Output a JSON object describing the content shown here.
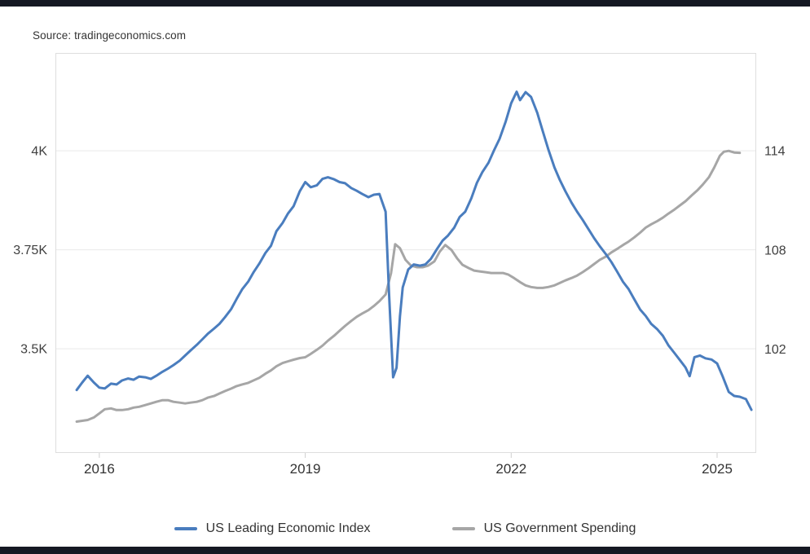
{
  "header": {
    "source": "Source: tradingeconomics.com"
  },
  "colors": {
    "top_bar": "#151823",
    "bottom_bar": "#151823",
    "grid": "#e9e9e9",
    "plot_border": "#dedede",
    "tick_text": "#404040",
    "x_tick_text": "#333333"
  },
  "chart_data": {
    "type": "line",
    "title": "",
    "xlabel": "",
    "grid": true,
    "legend_position": "bottom",
    "xlim": [
      2015.36,
      2025.57
    ],
    "x_ticks": [
      {
        "value": 2016,
        "label": "2016"
      },
      {
        "value": 2019,
        "label": "2019"
      },
      {
        "value": 2022,
        "label": "2022"
      },
      {
        "value": 2025,
        "label": "2025"
      }
    ],
    "left_axis": {
      "lim": [
        3237,
        4247
      ],
      "ticks": [
        {
          "value": 3500,
          "label": "3.5K"
        },
        {
          "value": 3750,
          "label": "3.75K"
        },
        {
          "value": 4000,
          "label": "4K"
        }
      ]
    },
    "right_axis": {
      "lim": [
        95.7,
        119.93
      ],
      "ticks": [
        {
          "value": 102,
          "label": "102"
        },
        {
          "value": 108,
          "label": "108"
        },
        {
          "value": 114,
          "label": "114"
        }
      ]
    },
    "series": [
      {
        "name": "US Leading Economic Index",
        "axis": "left",
        "color": "#4a7dbe",
        "points": [
          [
            2015.67,
            3396
          ],
          [
            2015.75,
            3415
          ],
          [
            2015.83,
            3432
          ],
          [
            2015.92,
            3415
          ],
          [
            2016.0,
            3402
          ],
          [
            2016.08,
            3400
          ],
          [
            2016.17,
            3412
          ],
          [
            2016.25,
            3410
          ],
          [
            2016.33,
            3420
          ],
          [
            2016.42,
            3425
          ],
          [
            2016.5,
            3422
          ],
          [
            2016.58,
            3430
          ],
          [
            2016.67,
            3428
          ],
          [
            2016.75,
            3424
          ],
          [
            2016.83,
            3432
          ],
          [
            2016.92,
            3442
          ],
          [
            2017.0,
            3450
          ],
          [
            2017.08,
            3459
          ],
          [
            2017.17,
            3470
          ],
          [
            2017.25,
            3483
          ],
          [
            2017.33,
            3496
          ],
          [
            2017.42,
            3510
          ],
          [
            2017.5,
            3524
          ],
          [
            2017.58,
            3538
          ],
          [
            2017.67,
            3551
          ],
          [
            2017.75,
            3563
          ],
          [
            2017.83,
            3580
          ],
          [
            2017.92,
            3600
          ],
          [
            2018.0,
            3626
          ],
          [
            2018.08,
            3650
          ],
          [
            2018.17,
            3670
          ],
          [
            2018.25,
            3694
          ],
          [
            2018.33,
            3715
          ],
          [
            2018.42,
            3742
          ],
          [
            2018.5,
            3760
          ],
          [
            2018.58,
            3797
          ],
          [
            2018.67,
            3818
          ],
          [
            2018.75,
            3842
          ],
          [
            2018.83,
            3860
          ],
          [
            2018.92,
            3898
          ],
          [
            2019.0,
            3921
          ],
          [
            2019.08,
            3908
          ],
          [
            2019.17,
            3913
          ],
          [
            2019.25,
            3929
          ],
          [
            2019.33,
            3933
          ],
          [
            2019.42,
            3928
          ],
          [
            2019.5,
            3921
          ],
          [
            2019.58,
            3918
          ],
          [
            2019.67,
            3906
          ],
          [
            2019.75,
            3899
          ],
          [
            2019.83,
            3891
          ],
          [
            2019.92,
            3883
          ],
          [
            2020.0,
            3889
          ],
          [
            2020.08,
            3891
          ],
          [
            2020.17,
            3846
          ],
          [
            2020.22,
            3640
          ],
          [
            2020.28,
            3428
          ],
          [
            2020.33,
            3452
          ],
          [
            2020.38,
            3582
          ],
          [
            2020.42,
            3655
          ],
          [
            2020.5,
            3700
          ],
          [
            2020.58,
            3713
          ],
          [
            2020.67,
            3710
          ],
          [
            2020.75,
            3713
          ],
          [
            2020.83,
            3727
          ],
          [
            2020.92,
            3752
          ],
          [
            2021.0,
            3773
          ],
          [
            2021.08,
            3786
          ],
          [
            2021.17,
            3806
          ],
          [
            2021.25,
            3833
          ],
          [
            2021.33,
            3846
          ],
          [
            2021.42,
            3880
          ],
          [
            2021.5,
            3919
          ],
          [
            2021.58,
            3946
          ],
          [
            2021.67,
            3970
          ],
          [
            2021.75,
            4001
          ],
          [
            2021.83,
            4030
          ],
          [
            2021.92,
            4074
          ],
          [
            2022.0,
            4120
          ],
          [
            2022.08,
            4149
          ],
          [
            2022.13,
            4128
          ],
          [
            2022.21,
            4148
          ],
          [
            2022.29,
            4136
          ],
          [
            2022.38,
            4096
          ],
          [
            2022.46,
            4050
          ],
          [
            2022.54,
            4004
          ],
          [
            2022.63,
            3958
          ],
          [
            2022.71,
            3926
          ],
          [
            2022.79,
            3898
          ],
          [
            2022.88,
            3869
          ],
          [
            2022.96,
            3846
          ],
          [
            2023.04,
            3826
          ],
          [
            2023.13,
            3801
          ],
          [
            2023.21,
            3779
          ],
          [
            2023.29,
            3759
          ],
          [
            2023.38,
            3739
          ],
          [
            2023.46,
            3719
          ],
          [
            2023.54,
            3696
          ],
          [
            2023.63,
            3669
          ],
          [
            2023.71,
            3651
          ],
          [
            2023.79,
            3626
          ],
          [
            2023.88,
            3599
          ],
          [
            2023.96,
            3583
          ],
          [
            2024.04,
            3563
          ],
          [
            2024.13,
            3549
          ],
          [
            2024.21,
            3533
          ],
          [
            2024.29,
            3509
          ],
          [
            2024.38,
            3489
          ],
          [
            2024.46,
            3471
          ],
          [
            2024.54,
            3453
          ],
          [
            2024.6,
            3431
          ],
          [
            2024.67,
            3479
          ],
          [
            2024.75,
            3483
          ],
          [
            2024.83,
            3476
          ],
          [
            2024.92,
            3473
          ],
          [
            2025.0,
            3463
          ],
          [
            2025.08,
            3431
          ],
          [
            2025.17,
            3391
          ],
          [
            2025.25,
            3381
          ],
          [
            2025.33,
            3379
          ],
          [
            2025.42,
            3373
          ],
          [
            2025.5,
            3346
          ]
        ]
      },
      {
        "name": "US Government Spending",
        "axis": "right",
        "color": "#a6a6a6",
        "points": [
          [
            2015.67,
            97.6
          ],
          [
            2015.75,
            97.65
          ],
          [
            2015.83,
            97.7
          ],
          [
            2015.92,
            97.85
          ],
          [
            2016.0,
            98.1
          ],
          [
            2016.08,
            98.35
          ],
          [
            2016.17,
            98.4
          ],
          [
            2016.25,
            98.3
          ],
          [
            2016.33,
            98.3
          ],
          [
            2016.42,
            98.35
          ],
          [
            2016.5,
            98.45
          ],
          [
            2016.58,
            98.5
          ],
          [
            2016.67,
            98.6
          ],
          [
            2016.75,
            98.7
          ],
          [
            2016.83,
            98.8
          ],
          [
            2016.92,
            98.9
          ],
          [
            2017.0,
            98.9
          ],
          [
            2017.08,
            98.8
          ],
          [
            2017.17,
            98.75
          ],
          [
            2017.25,
            98.7
          ],
          [
            2017.33,
            98.75
          ],
          [
            2017.42,
            98.8
          ],
          [
            2017.5,
            98.9
          ],
          [
            2017.58,
            99.05
          ],
          [
            2017.67,
            99.15
          ],
          [
            2017.75,
            99.3
          ],
          [
            2017.83,
            99.45
          ],
          [
            2017.92,
            99.6
          ],
          [
            2018.0,
            99.75
          ],
          [
            2018.08,
            99.85
          ],
          [
            2018.17,
            99.95
          ],
          [
            2018.25,
            100.1
          ],
          [
            2018.33,
            100.25
          ],
          [
            2018.42,
            100.5
          ],
          [
            2018.5,
            100.7
          ],
          [
            2018.58,
            100.95
          ],
          [
            2018.67,
            101.15
          ],
          [
            2018.75,
            101.25
          ],
          [
            2018.83,
            101.35
          ],
          [
            2018.92,
            101.45
          ],
          [
            2019.0,
            101.5
          ],
          [
            2019.08,
            101.7
          ],
          [
            2019.17,
            101.95
          ],
          [
            2019.25,
            102.2
          ],
          [
            2019.33,
            102.5
          ],
          [
            2019.42,
            102.8
          ],
          [
            2019.5,
            103.1
          ],
          [
            2019.58,
            103.4
          ],
          [
            2019.67,
            103.7
          ],
          [
            2019.75,
            103.95
          ],
          [
            2019.83,
            104.15
          ],
          [
            2019.92,
            104.35
          ],
          [
            2020.0,
            104.6
          ],
          [
            2020.08,
            104.9
          ],
          [
            2020.17,
            105.3
          ],
          [
            2020.25,
            106.6
          ],
          [
            2020.31,
            108.35
          ],
          [
            2020.38,
            108.1
          ],
          [
            2020.46,
            107.4
          ],
          [
            2020.54,
            107.05
          ],
          [
            2020.63,
            106.95
          ],
          [
            2020.71,
            106.95
          ],
          [
            2020.79,
            107.05
          ],
          [
            2020.88,
            107.3
          ],
          [
            2020.96,
            107.9
          ],
          [
            2021.04,
            108.3
          ],
          [
            2021.13,
            108.0
          ],
          [
            2021.21,
            107.5
          ],
          [
            2021.29,
            107.1
          ],
          [
            2021.38,
            106.9
          ],
          [
            2021.46,
            106.75
          ],
          [
            2021.54,
            106.7
          ],
          [
            2021.63,
            106.65
          ],
          [
            2021.71,
            106.6
          ],
          [
            2021.79,
            106.6
          ],
          [
            2021.88,
            106.6
          ],
          [
            2021.96,
            106.5
          ],
          [
            2022.04,
            106.3
          ],
          [
            2022.13,
            106.05
          ],
          [
            2022.21,
            105.85
          ],
          [
            2022.29,
            105.75
          ],
          [
            2022.38,
            105.7
          ],
          [
            2022.46,
            105.7
          ],
          [
            2022.54,
            105.75
          ],
          [
            2022.63,
            105.85
          ],
          [
            2022.71,
            106.0
          ],
          [
            2022.79,
            106.15
          ],
          [
            2022.88,
            106.3
          ],
          [
            2022.96,
            106.45
          ],
          [
            2023.04,
            106.65
          ],
          [
            2023.13,
            106.9
          ],
          [
            2023.21,
            107.15
          ],
          [
            2023.29,
            107.4
          ],
          [
            2023.38,
            107.6
          ],
          [
            2023.46,
            107.85
          ],
          [
            2023.54,
            108.05
          ],
          [
            2023.63,
            108.3
          ],
          [
            2023.71,
            108.5
          ],
          [
            2023.79,
            108.75
          ],
          [
            2023.88,
            109.05
          ],
          [
            2023.96,
            109.35
          ],
          [
            2024.04,
            109.55
          ],
          [
            2024.13,
            109.75
          ],
          [
            2024.21,
            109.95
          ],
          [
            2024.29,
            110.2
          ],
          [
            2024.38,
            110.45
          ],
          [
            2024.46,
            110.7
          ],
          [
            2024.54,
            110.95
          ],
          [
            2024.63,
            111.3
          ],
          [
            2024.71,
            111.6
          ],
          [
            2024.79,
            111.95
          ],
          [
            2024.88,
            112.4
          ],
          [
            2024.96,
            113.0
          ],
          [
            2025.04,
            113.7
          ],
          [
            2025.1,
            113.95
          ],
          [
            2025.17,
            114.0
          ],
          [
            2025.25,
            113.9
          ],
          [
            2025.33,
            113.88
          ]
        ]
      }
    ]
  }
}
